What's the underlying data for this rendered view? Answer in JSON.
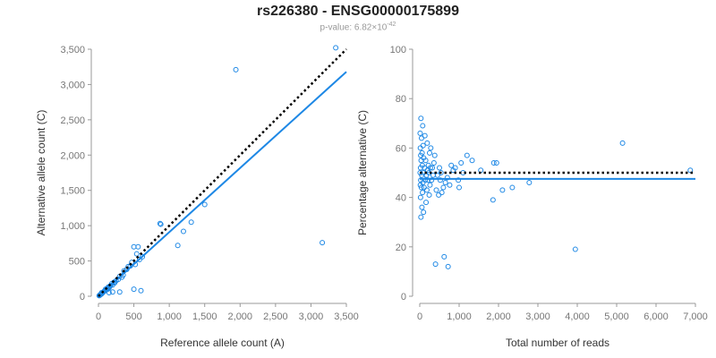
{
  "title": "rs226380 - ENSG00000175899",
  "subtitle": {
    "prefix": "p-value: 6.82×10",
    "exponent": "-42"
  },
  "colors": {
    "points": "#1e88e5",
    "fit": "#1e88e5",
    "reference": "#000000",
    "axis": "#999999",
    "tick_text": "#777777"
  },
  "chart_data": [
    {
      "type": "scatter",
      "name": "allele-count-scatter",
      "xlabel": "Reference allele count (A)",
      "ylabel": "Alternative allele count (C)",
      "xlim": [
        0,
        3500
      ],
      "ylim": [
        0,
        3500
      ],
      "xticks": [
        0,
        500,
        1000,
        1500,
        2000,
        2500,
        3000,
        3500
      ],
      "yticks": [
        0,
        500,
        1000,
        1500,
        2000,
        2500,
        3000,
        3500
      ],
      "xtick_labels": [
        "0",
        "500",
        "1,000",
        "1,500",
        "2,000",
        "2,500",
        "3,000",
        "3,500"
      ],
      "ytick_labels": [
        "0",
        "500",
        "1,000",
        "1,500",
        "2,000",
        "2,500",
        "3,000",
        "3,500"
      ],
      "points": [
        [
          3350,
          3520
        ],
        [
          1940,
          3210
        ],
        [
          3160,
          760
        ],
        [
          1500,
          1300
        ],
        [
          1310,
          1050
        ],
        [
          1200,
          920
        ],
        [
          1120,
          720
        ],
        [
          870,
          1030
        ],
        [
          880,
          1020
        ],
        [
          600,
          80
        ],
        [
          500,
          100
        ],
        [
          520,
          450
        ],
        [
          540,
          600
        ],
        [
          500,
          700
        ],
        [
          560,
          700
        ],
        [
          450,
          430
        ],
        [
          470,
          480
        ],
        [
          400,
          380
        ],
        [
          420,
          420
        ],
        [
          350,
          300
        ],
        [
          360,
          360
        ],
        [
          330,
          270
        ],
        [
          300,
          280
        ],
        [
          280,
          240
        ],
        [
          300,
          60
        ],
        [
          250,
          220
        ],
        [
          230,
          190
        ],
        [
          220,
          200
        ],
        [
          200,
          160
        ],
        [
          190,
          180
        ],
        [
          170,
          150
        ],
        [
          160,
          140
        ],
        [
          150,
          120
        ],
        [
          140,
          130
        ],
        [
          130,
          100
        ],
        [
          120,
          110
        ],
        [
          110,
          90
        ],
        [
          100,
          100
        ],
        [
          90,
          80
        ],
        [
          80,
          70
        ],
        [
          70,
          60
        ],
        [
          60,
          50
        ],
        [
          50,
          40
        ],
        [
          45,
          50
        ],
        [
          40,
          30
        ],
        [
          35,
          30
        ],
        [
          30,
          25
        ],
        [
          25,
          20
        ],
        [
          20,
          18
        ],
        [
          15,
          12
        ],
        [
          10,
          8
        ],
        [
          200,
          60
        ],
        [
          150,
          50
        ],
        [
          580,
          520
        ],
        [
          620,
          560
        ]
      ],
      "reference_line": [
        [
          0,
          0
        ],
        [
          3500,
          3500
        ]
      ],
      "fit_line": [
        [
          0,
          0
        ],
        [
          3500,
          3180
        ]
      ]
    },
    {
      "type": "scatter",
      "name": "percentage-scatter",
      "xlabel": "Total number of reads",
      "ylabel": "Percentage alternative (C)",
      "xlim": [
        0,
        7000
      ],
      "ylim": [
        0,
        100
      ],
      "xticks": [
        0,
        1000,
        2000,
        3000,
        4000,
        5000,
        6000,
        7000
      ],
      "yticks": [
        0,
        20,
        40,
        60,
        80,
        100
      ],
      "xtick_labels": [
        "0",
        "1,000",
        "2,000",
        "3,000",
        "4,000",
        "5,000",
        "6,000",
        "7,000"
      ],
      "ytick_labels": [
        "0",
        "20",
        "40",
        "60",
        "80",
        "100"
      ],
      "points": [
        [
          6870,
          51
        ],
        [
          5150,
          62
        ],
        [
          3950,
          19
        ],
        [
          2780,
          46
        ],
        [
          2350,
          44
        ],
        [
          2100,
          43
        ],
        [
          1950,
          54
        ],
        [
          1880,
          54
        ],
        [
          1860,
          39
        ],
        [
          1550,
          51
        ],
        [
          1330,
          55
        ],
        [
          1200,
          57
        ],
        [
          1100,
          50
        ],
        [
          1050,
          54
        ],
        [
          1000,
          44
        ],
        [
          980,
          47
        ],
        [
          900,
          52
        ],
        [
          850,
          51
        ],
        [
          800,
          53
        ],
        [
          760,
          45
        ],
        [
          720,
          12
        ],
        [
          700,
          48
        ],
        [
          650,
          46
        ],
        [
          620,
          16
        ],
        [
          600,
          44
        ],
        [
          560,
          42
        ],
        [
          540,
          50
        ],
        [
          520,
          47
        ],
        [
          500,
          52
        ],
        [
          480,
          41
        ],
        [
          450,
          49
        ],
        [
          420,
          43
        ],
        [
          400,
          13
        ],
        [
          380,
          57
        ],
        [
          360,
          54
        ],
        [
          340,
          49
        ],
        [
          320,
          52
        ],
        [
          300,
          47
        ],
        [
          280,
          60
        ],
        [
          270,
          52
        ],
        [
          260,
          45
        ],
        [
          250,
          58
        ],
        [
          240,
          41
        ],
        [
          230,
          50
        ],
        [
          220,
          53
        ],
        [
          210,
          47
        ],
        [
          200,
          51
        ],
        [
          190,
          62
        ],
        [
          180,
          43
        ],
        [
          170,
          49
        ],
        [
          160,
          38
        ],
        [
          150,
          55
        ],
        [
          140,
          47
        ],
        [
          130,
          65
        ],
        [
          120,
          52
        ],
        [
          110,
          44
        ],
        [
          100,
          56
        ],
        [
          95,
          34
        ],
        [
          90,
          50
        ],
        [
          85,
          61
        ],
        [
          80,
          46
        ],
        [
          75,
          69
        ],
        [
          70,
          42
        ],
        [
          65,
          53
        ],
        [
          60,
          58
        ],
        [
          55,
          36
        ],
        [
          50,
          49
        ],
        [
          45,
          64
        ],
        [
          40,
          44
        ],
        [
          35,
          55
        ],
        [
          30,
          72
        ],
        [
          30,
          32
        ],
        [
          25,
          47
        ],
        [
          25,
          57
        ],
        [
          20,
          40
        ],
        [
          20,
          52
        ],
        [
          15,
          60
        ],
        [
          15,
          45
        ],
        [
          10,
          50
        ],
        [
          10,
          66
        ]
      ],
      "reference_line": [
        [
          0,
          50
        ],
        [
          7000,
          50
        ]
      ],
      "fit_line": [
        [
          0,
          47.5
        ],
        [
          7000,
          47.5
        ]
      ]
    }
  ]
}
